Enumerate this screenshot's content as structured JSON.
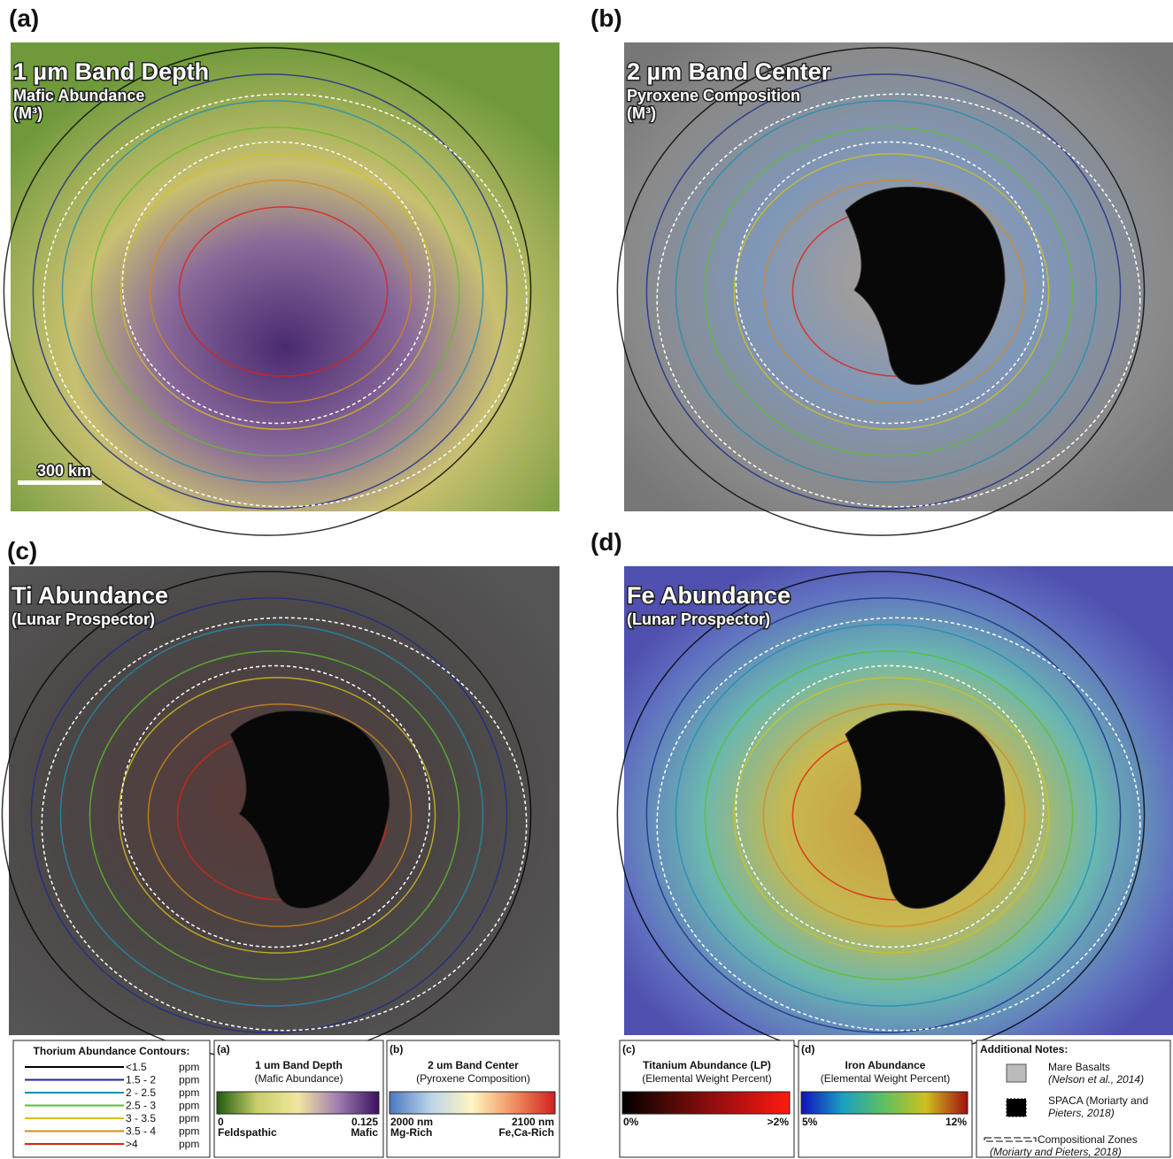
{
  "panels": [
    {
      "label": "(a)",
      "title": "1 µm Band Depth",
      "lines": [
        "Mafic Abundance",
        "(M³)"
      ],
      "spaca": false
    },
    {
      "label": "(b)",
      "title": "2 µm Band Center",
      "lines": [
        "Pyroxene Composition",
        "(M³)"
      ],
      "spaca": true
    },
    {
      "label": "(c)",
      "title": "Ti Abundance",
      "lines": [
        "(Lunar Prospector)"
      ],
      "spaca": true
    },
    {
      "label": "(d)",
      "title": "Fe Abundance",
      "lines": [
        "(Lunar Prospector)"
      ],
      "spaca": true
    }
  ],
  "scale_bar": "300 km",
  "thorium_legend": {
    "title": "Thorium Abundance Contours:",
    "entries": [
      {
        "range": "<1.5",
        "unit": "ppm",
        "color": "#000000"
      },
      {
        "range": "1.5 - 2",
        "unit": "ppm",
        "color": "#1a2a8c"
      },
      {
        "range": "2    - 2.5",
        "unit": "ppm",
        "color": "#1e8fb4"
      },
      {
        "range": "2.5 - 3",
        "unit": "ppm",
        "color": "#5cbf2a"
      },
      {
        "range": "3    - 3.5",
        "unit": "ppm",
        "color": "#d4c21a"
      },
      {
        "range": "3.5 - 4",
        "unit": "ppm",
        "color": "#d48a1a"
      },
      {
        "range": ">4",
        "unit": "ppm",
        "color": "#e02010"
      }
    ]
  },
  "colorbars": [
    {
      "label": "(a)",
      "title": "1 um Band Depth",
      "subtitle": "(Mafic Abundance)",
      "min": "0",
      "max": "0.125",
      "min_note": "Feldspathic",
      "max_note": "Mafic",
      "colors": [
        "#1f5a10",
        "#c9cf6a",
        "#f2e6a0",
        "#a07cb0",
        "#3a1060"
      ]
    },
    {
      "label": "(b)",
      "title": "2 um Band Center",
      "subtitle": "(Pyroxene Composition)",
      "min": "2000 nm",
      "max": "2100 nm",
      "min_note": "Mg-Rich",
      "max_note": "Fe,Ca-Rich",
      "colors": [
        "#4a78c0",
        "#bcd4ea",
        "#fff6c0",
        "#f09060",
        "#d02020"
      ]
    },
    {
      "label": "(c)",
      "title": "Titanium Abundance (LP)",
      "subtitle": "(Elemental Weight Percent)",
      "min": "0%",
      "max": ">2%",
      "colors": [
        "#000000",
        "#5a0a08",
        "#b01010",
        "#ff1a10"
      ]
    },
    {
      "label": "(d)",
      "title": "Iron Abundance",
      "subtitle": "(Elemental Weight Percent)",
      "min": "5%",
      "max": "12%",
      "colors": [
        "#1010c0",
        "#1aa0c0",
        "#60c060",
        "#d0c020",
        "#a01010"
      ]
    }
  ],
  "notes": {
    "title": "Additional Notes:",
    "items": [
      {
        "name": "Mare Basalts",
        "source": "(Nelson et al., 2014)"
      },
      {
        "name": "SPACA (Moriarty and",
        "source": "Pieters, 2018)"
      },
      {
        "name": "Compositional Zones",
        "source": "(Moriarty and Pieters, 2018)"
      }
    ]
  }
}
